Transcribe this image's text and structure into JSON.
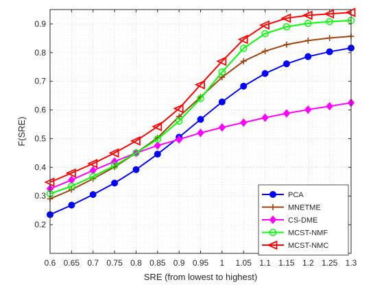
{
  "chart_data": {
    "type": "line",
    "title": "",
    "xlabel": "SRE (from lowest to highest)",
    "ylabel": "F(SRE)",
    "xlim": [
      0.6,
      1.3
    ],
    "ylim": [
      0.1,
      0.95
    ],
    "x": [
      0.6,
      0.65,
      0.7,
      0.75,
      0.8,
      0.85,
      0.9,
      0.95,
      1.0,
      1.05,
      1.1,
      1.15,
      1.2,
      1.25,
      1.3
    ],
    "x_tick_labels": [
      "0.6",
      "0.65",
      "0.7",
      "0.75",
      "0.8",
      "0.85",
      "0.9",
      "0.95",
      "1",
      "1.05",
      "1.1",
      "1.15",
      "1.2",
      "1.25",
      "1.3"
    ],
    "y_ticks": [
      0.2,
      0.3,
      0.4,
      0.5,
      0.6,
      0.7,
      0.8,
      0.9
    ],
    "y_tick_labels": [
      "0.2",
      "0.3",
      "0.4",
      "0.5",
      "0.6",
      "0.7",
      "0.8",
      "0.9"
    ],
    "grid": "on (dotted major and minor)",
    "legend_position": "bottom-right",
    "series": [
      {
        "name": "PCA",
        "color": "#0000ff",
        "marker": "circle-filled",
        "values": [
          0.235,
          0.268,
          0.305,
          0.345,
          0.392,
          0.446,
          0.505,
          0.567,
          0.628,
          0.683,
          0.727,
          0.761,
          0.786,
          0.803,
          0.816
        ]
      },
      {
        "name": "MNETME",
        "color": "#a0410d",
        "marker": "plus",
        "values": [
          0.29,
          0.322,
          0.36,
          0.401,
          0.45,
          0.503,
          0.577,
          0.645,
          0.714,
          0.77,
          0.805,
          0.828,
          0.842,
          0.851,
          0.857
        ]
      },
      {
        "name": "CS-DME",
        "color": "#ff00ff",
        "marker": "diamond-filled",
        "values": [
          0.325,
          0.356,
          0.389,
          0.42,
          0.45,
          0.476,
          0.497,
          0.52,
          0.539,
          0.556,
          0.573,
          0.588,
          0.601,
          0.613,
          0.625
        ]
      },
      {
        "name": "MCST-NMF",
        "color": "#00ff00",
        "marker": "circle-open",
        "values": [
          0.308,
          0.334,
          0.368,
          0.406,
          0.45,
          0.498,
          0.561,
          0.64,
          0.732,
          0.815,
          0.866,
          0.89,
          0.902,
          0.908,
          0.912
        ]
      },
      {
        "name": "MCST-NMC",
        "color": "#ff0000",
        "marker": "triangle-left",
        "values": [
          0.348,
          0.38,
          0.413,
          0.45,
          0.492,
          0.542,
          0.605,
          0.688,
          0.77,
          0.846,
          0.896,
          0.92,
          0.93,
          0.935,
          0.94
        ]
      }
    ]
  }
}
